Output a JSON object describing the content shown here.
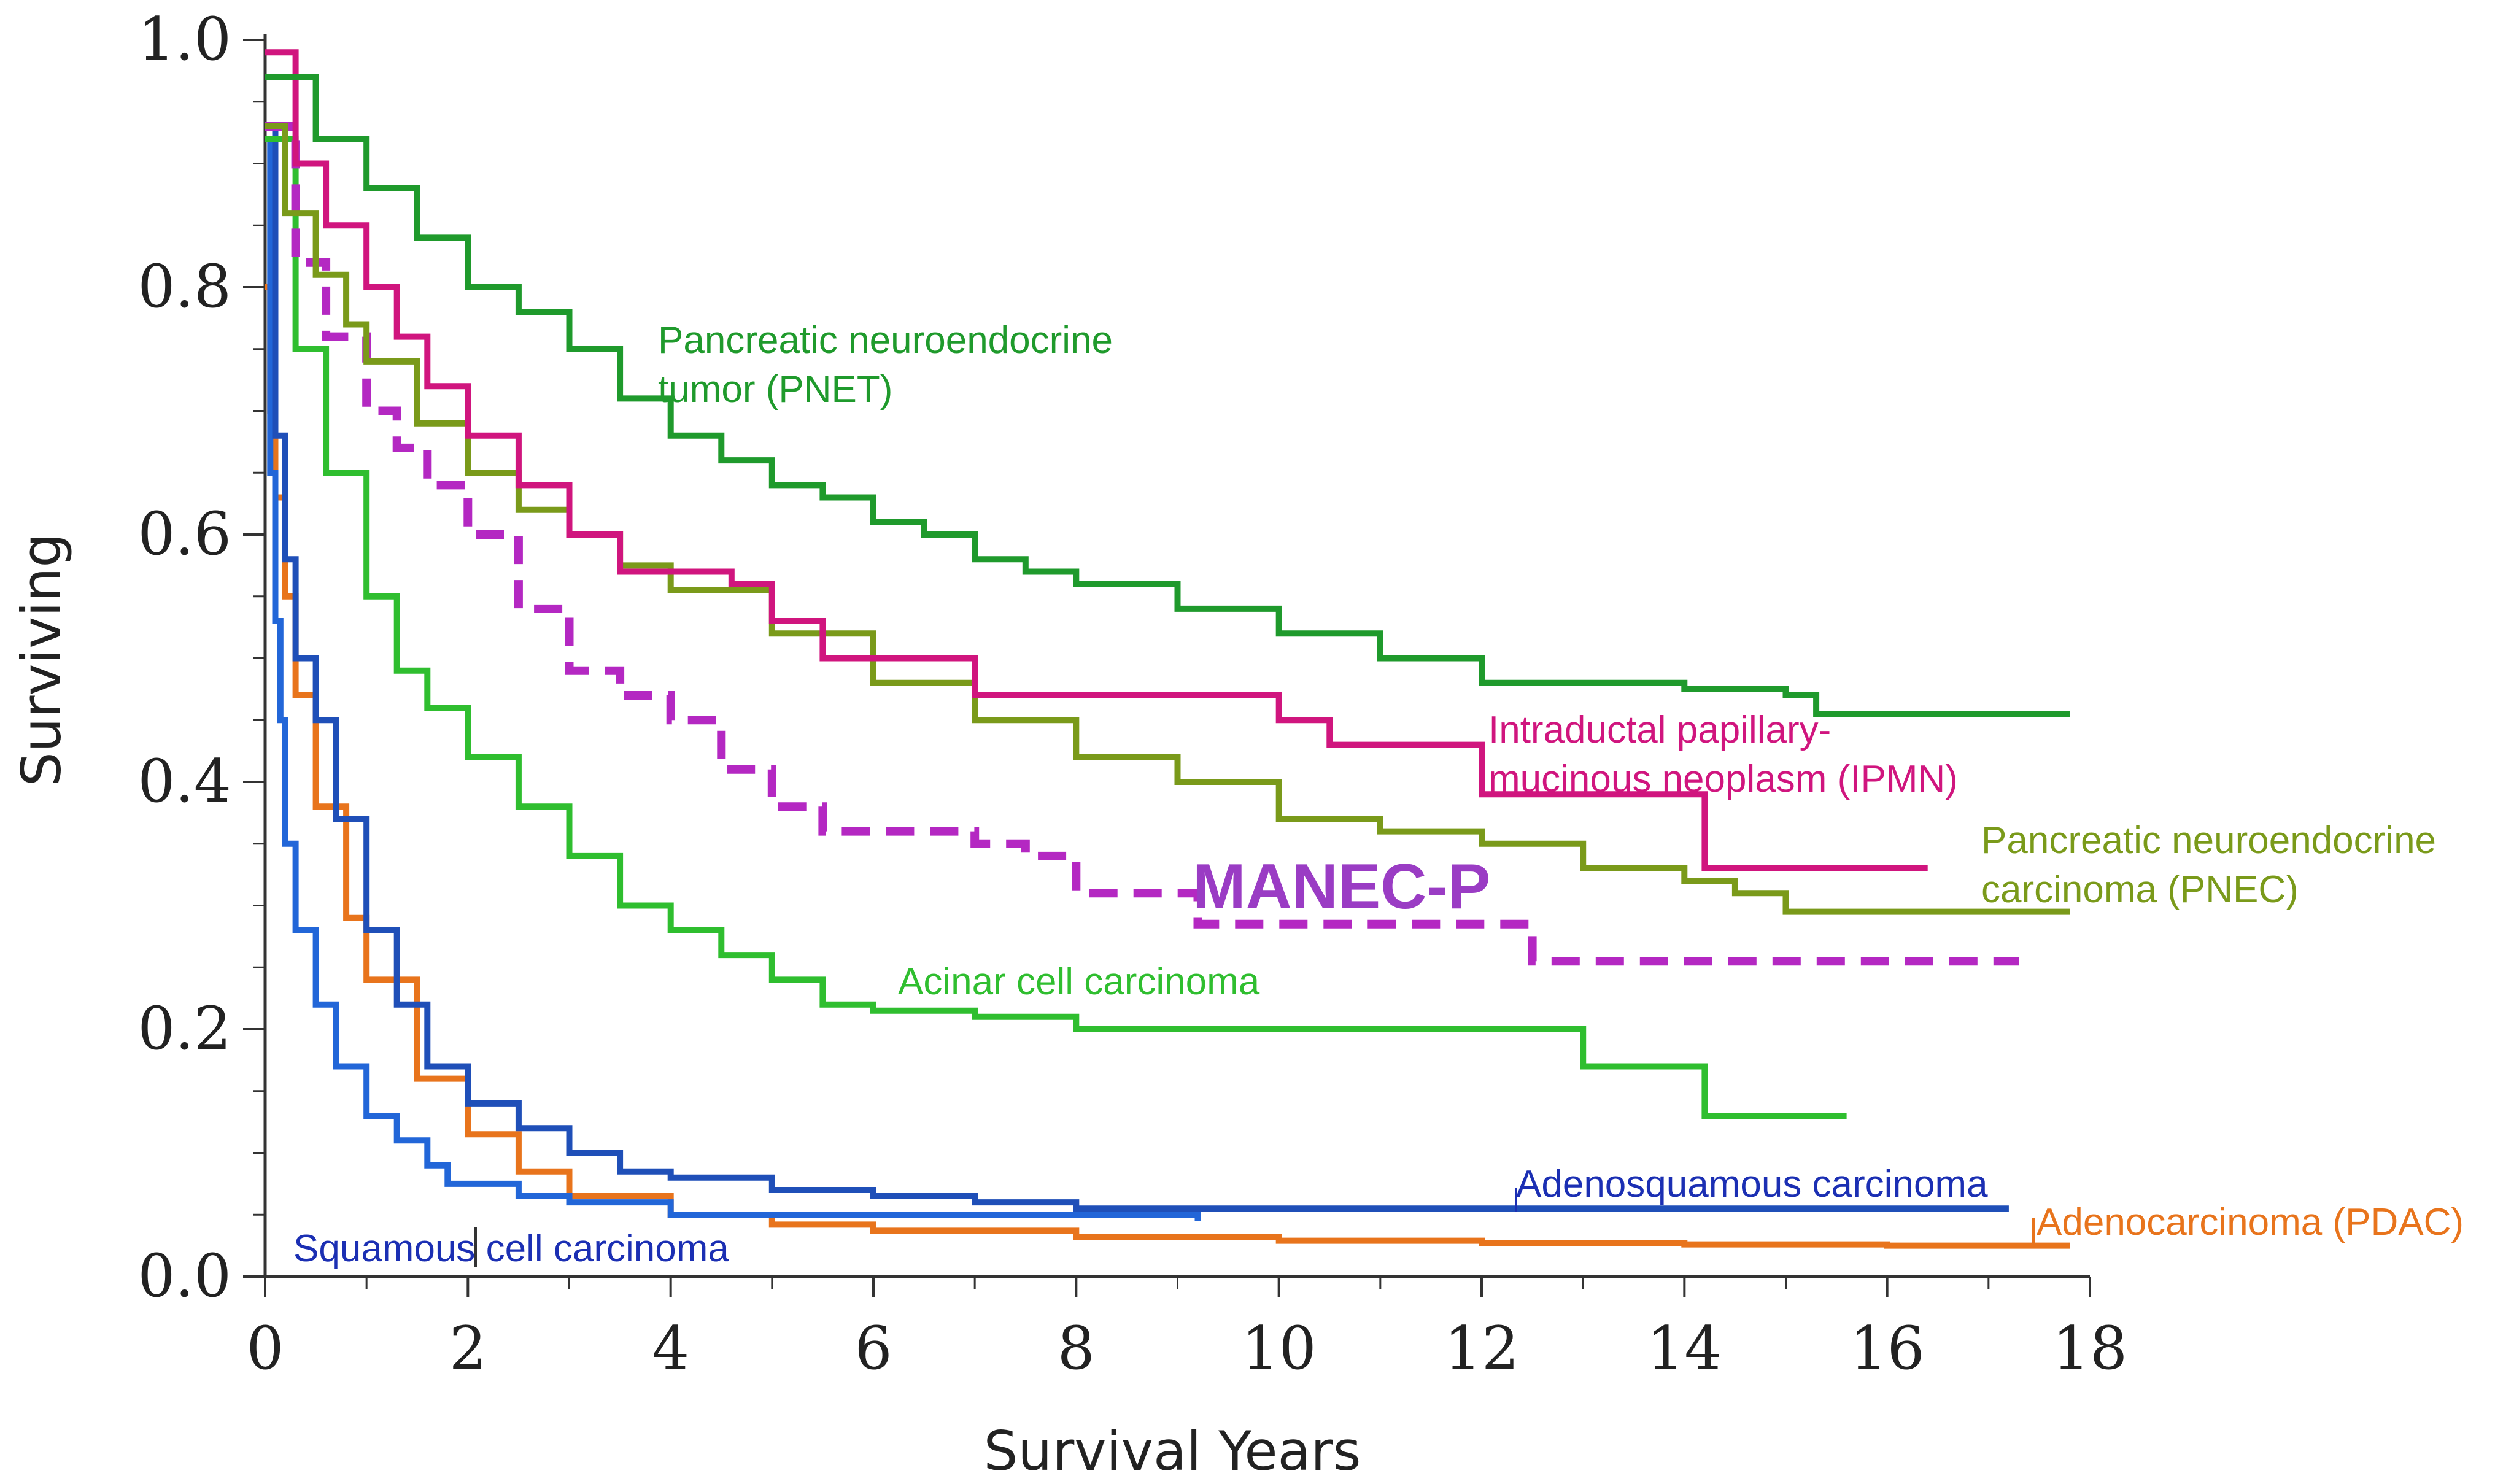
{
  "chart_data": {
    "type": "line",
    "title": "",
    "xlabel": "Survival Years",
    "ylabel": "Surviving",
    "xlim": [
      0,
      18
    ],
    "ylim": [
      0,
      1
    ],
    "xticks": [
      "0",
      "2",
      "4",
      "6",
      "8",
      "10",
      "12",
      "14",
      "16",
      "18"
    ],
    "yticks": [
      "0.0",
      "0.2",
      "0.4",
      "0.6",
      "0.8",
      "1.0"
    ],
    "grid": false,
    "legend": "none (inline labels)",
    "series": [
      {
        "key": "pnet",
        "name": "Pancreatic neuroendocrine tumor (PNET)",
        "label_lines": [
          "Pancreatic neuroendocrine",
          "tumor (PNET)"
        ],
        "color": "#1f9a2c",
        "dashed": false,
        "x": [
          0,
          0.5,
          1,
          1.5,
          2,
          2.5,
          3,
          3.5,
          4,
          4.5,
          5,
          5.5,
          6,
          6.5,
          7,
          7.5,
          8,
          9,
          10,
          11,
          12,
          13,
          14,
          15,
          15.3,
          17.8
        ],
        "y": [
          0.97,
          0.92,
          0.88,
          0.84,
          0.8,
          0.78,
          0.75,
          0.71,
          0.68,
          0.66,
          0.64,
          0.63,
          0.61,
          0.6,
          0.58,
          0.57,
          0.56,
          0.54,
          0.52,
          0.5,
          0.48,
          0.48,
          0.475,
          0.47,
          0.455,
          0.455
        ]
      },
      {
        "key": "ipmn",
        "name": "Intraductal papillary-mucinous neoplasm (IPMN)",
        "label_lines": [
          "Intraductal papillary-",
          "mucinous neoplasm (IPMN)"
        ],
        "color": "#d0157e",
        "dashed": false,
        "x": [
          0,
          0.3,
          0.6,
          1,
          1.3,
          1.6,
          2,
          2.5,
          3,
          3.5,
          4,
          4.6,
          5,
          5.5,
          6,
          7,
          8,
          9,
          10,
          10.5,
          11,
          12,
          12,
          14.2,
          14.2,
          16.4
        ],
        "y": [
          0.99,
          0.9,
          0.85,
          0.8,
          0.76,
          0.72,
          0.68,
          0.64,
          0.6,
          0.57,
          0.57,
          0.56,
          0.53,
          0.5,
          0.5,
          0.47,
          0.47,
          0.47,
          0.45,
          0.43,
          0.43,
          0.43,
          0.39,
          0.39,
          0.33,
          0.33
        ]
      },
      {
        "key": "pnec",
        "name": "Pancreatic neuroendocrine carcinoma (PNEC)",
        "label_lines": [
          "Pancreatic neuroendocrine",
          "carcinoma (PNEC)"
        ],
        "color": "#7a9a1a",
        "dashed": false,
        "x": [
          0,
          0.2,
          0.5,
          0.8,
          1,
          1.5,
          2,
          2.5,
          3,
          3.5,
          4,
          5,
          6,
          7,
          8,
          9,
          10,
          11,
          12,
          13,
          14,
          14.5,
          15,
          17.8
        ],
        "y": [
          0.93,
          0.86,
          0.81,
          0.77,
          0.74,
          0.69,
          0.65,
          0.62,
          0.6,
          0.575,
          0.555,
          0.52,
          0.48,
          0.45,
          0.42,
          0.4,
          0.37,
          0.36,
          0.35,
          0.33,
          0.32,
          0.31,
          0.295,
          0.295
        ]
      },
      {
        "key": "manec",
        "name": "MANEC-P",
        "label_lines": [
          "MANEC-P"
        ],
        "color": "#b428c2",
        "dashed": true,
        "x": [
          0,
          0.3,
          0.6,
          1,
          1.3,
          1.6,
          2,
          2.5,
          3,
          3.5,
          4,
          4.5,
          5,
          5.5,
          6,
          7,
          7.5,
          8,
          9,
          9.2,
          10,
          12.5,
          12.5,
          17.3
        ],
        "y": [
          0.93,
          0.82,
          0.76,
          0.7,
          0.67,
          0.64,
          0.6,
          0.54,
          0.49,
          0.47,
          0.45,
          0.41,
          0.38,
          0.36,
          0.36,
          0.35,
          0.34,
          0.31,
          0.31,
          0.285,
          0.285,
          0.28,
          0.255,
          0.255
        ]
      },
      {
        "key": "acinar",
        "name": "Acinar cell carcinoma",
        "label_lines": [
          "Acinar cell carcinoma"
        ],
        "color": "#2fbe2f",
        "dashed": false,
        "x": [
          0,
          0.3,
          0.6,
          1,
          1.3,
          1.6,
          2,
          2.5,
          3,
          3.5,
          4,
          4.5,
          5,
          5.5,
          6,
          7,
          8,
          10,
          13,
          13,
          14.2,
          14.2,
          15.6
        ],
        "y": [
          0.92,
          0.75,
          0.65,
          0.55,
          0.49,
          0.46,
          0.42,
          0.38,
          0.34,
          0.3,
          0.28,
          0.26,
          0.24,
          0.22,
          0.215,
          0.21,
          0.2,
          0.2,
          0.2,
          0.17,
          0.17,
          0.13,
          0.13
        ]
      },
      {
        "key": "adenosquamous",
        "name": "Adenosquamous carcinoma",
        "label_lines": [
          "Adenosquamous carcinoma"
        ],
        "color": "#1f4fb8",
        "dashed": false,
        "x": [
          0,
          0.1,
          0.2,
          0.3,
          0.5,
          0.7,
          1,
          1.3,
          1.6,
          2,
          2.5,
          3,
          3.5,
          4,
          5,
          6,
          7,
          8,
          10,
          17.2
        ],
        "y": [
          0.93,
          0.68,
          0.58,
          0.5,
          0.45,
          0.37,
          0.28,
          0.22,
          0.17,
          0.14,
          0.12,
          0.1,
          0.085,
          0.08,
          0.07,
          0.065,
          0.06,
          0.055,
          0.055,
          0.055
        ]
      },
      {
        "key": "pdac",
        "name": "Adenocarcinoma (PDAC)",
        "label_lines": [
          "Adenocarcinoma (PDAC)"
        ],
        "color": "#e8741c",
        "dashed": false,
        "x": [
          0,
          0.05,
          0.1,
          0.2,
          0.3,
          0.5,
          0.8,
          1,
          1.5,
          2,
          2.5,
          3,
          4,
          5,
          6,
          8,
          10,
          12,
          14,
          16,
          17.8
        ],
        "y": [
          0.8,
          0.7,
          0.63,
          0.55,
          0.47,
          0.38,
          0.29,
          0.24,
          0.16,
          0.115,
          0.085,
          0.065,
          0.05,
          0.042,
          0.037,
          0.032,
          0.029,
          0.027,
          0.026,
          0.025,
          0.025
        ]
      },
      {
        "key": "squamous",
        "name": "Squamous cell carcinoma",
        "label_lines": [
          "Squamous cell carcinoma"
        ],
        "color": "#2266d8",
        "dashed": false,
        "x": [
          0,
          0.05,
          0.1,
          0.15,
          0.2,
          0.3,
          0.5,
          0.7,
          1,
          1.3,
          1.6,
          1.8,
          2,
          2.5,
          3,
          4,
          5,
          6,
          8,
          9.2
        ],
        "y": [
          0.92,
          0.65,
          0.53,
          0.45,
          0.35,
          0.28,
          0.22,
          0.17,
          0.13,
          0.11,
          0.09,
          0.075,
          0.075,
          0.065,
          0.06,
          0.05,
          0.05,
          0.05,
          0.05,
          0.045
        ]
      }
    ]
  }
}
